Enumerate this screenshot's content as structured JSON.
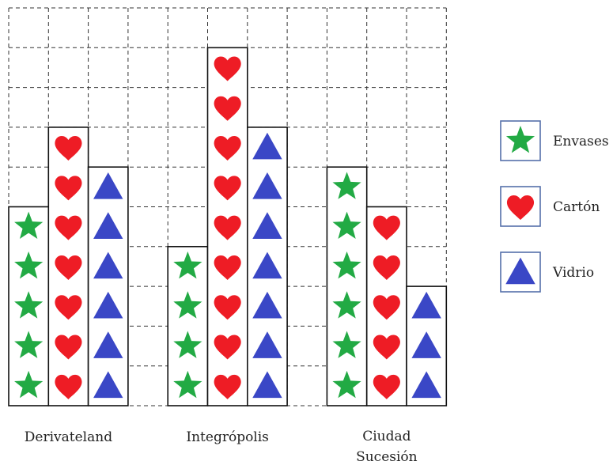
{
  "chart_data": {
    "type": "bar",
    "chart_style": "pictograph",
    "categories": [
      "Derivateland",
      "Integrópolis",
      "Ciudad Sucesión"
    ],
    "series": [
      {
        "name": "Envases",
        "icon": "star-icon",
        "color": "#22aa44",
        "values": [
          5,
          4,
          6
        ]
      },
      {
        "name": "Cartón",
        "icon": "heart-icon",
        "color": "#ee1c25",
        "values": [
          7,
          9,
          5
        ]
      },
      {
        "name": "Vidrio",
        "icon": "triangle-icon",
        "color": "#3a47c6",
        "values": [
          6,
          7,
          3
        ]
      }
    ],
    "ylim": [
      0,
      9
    ],
    "grid": true,
    "legend_position": "right"
  }
}
